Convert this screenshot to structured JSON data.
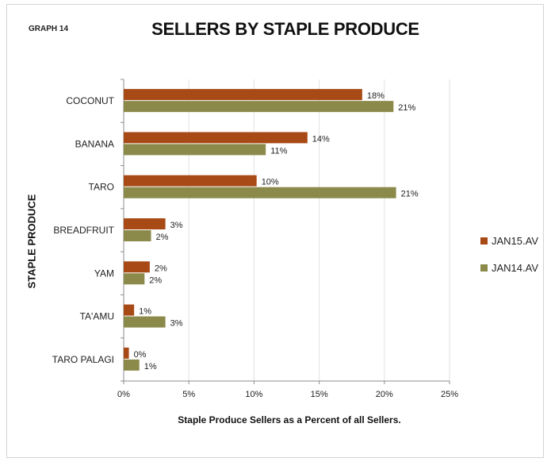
{
  "header": {
    "graph_label": "GRAPH 14",
    "title": "SELLERS BY STAPLE PRODUCE"
  },
  "colors": {
    "series_2015": "#a84a16",
    "series_2014": "#8b8a4a",
    "axis": "#8c8c8c",
    "grid": "#e2e2e2",
    "text": "#222222"
  },
  "chart_data": {
    "type": "bar",
    "orientation": "horizontal",
    "title": "SELLERS BY STAPLE PRODUCE",
    "xlabel": "Staple Produce Sellers as a Percent of all Sellers.",
    "ylabel": "STAPLE PRODUCE",
    "categories": [
      "COCONUT",
      "BANANA",
      "TARO",
      "BREADFRUIT",
      "YAM",
      "TA'AMU",
      "TARO PALAGI"
    ],
    "series": [
      {
        "name": "JAN15.AV",
        "values": [
          18.3,
          14.1,
          10.2,
          3.2,
          2.0,
          0.8,
          0.4
        ],
        "labels": [
          "18%",
          "14%",
          "10%",
          "3%",
          "2%",
          "1%",
          "0%"
        ]
      },
      {
        "name": "JAN14.AV",
        "values": [
          20.7,
          10.9,
          20.9,
          2.1,
          1.6,
          3.2,
          1.2
        ],
        "labels": [
          "21%",
          "11%",
          "21%",
          "2%",
          "2%",
          "3%",
          "1%"
        ]
      }
    ],
    "xlim": [
      0,
      25
    ],
    "xticks": [
      "0%",
      "5%",
      "10%",
      "15%",
      "20%",
      "25%"
    ],
    "grid": false,
    "legend_position": "right"
  }
}
